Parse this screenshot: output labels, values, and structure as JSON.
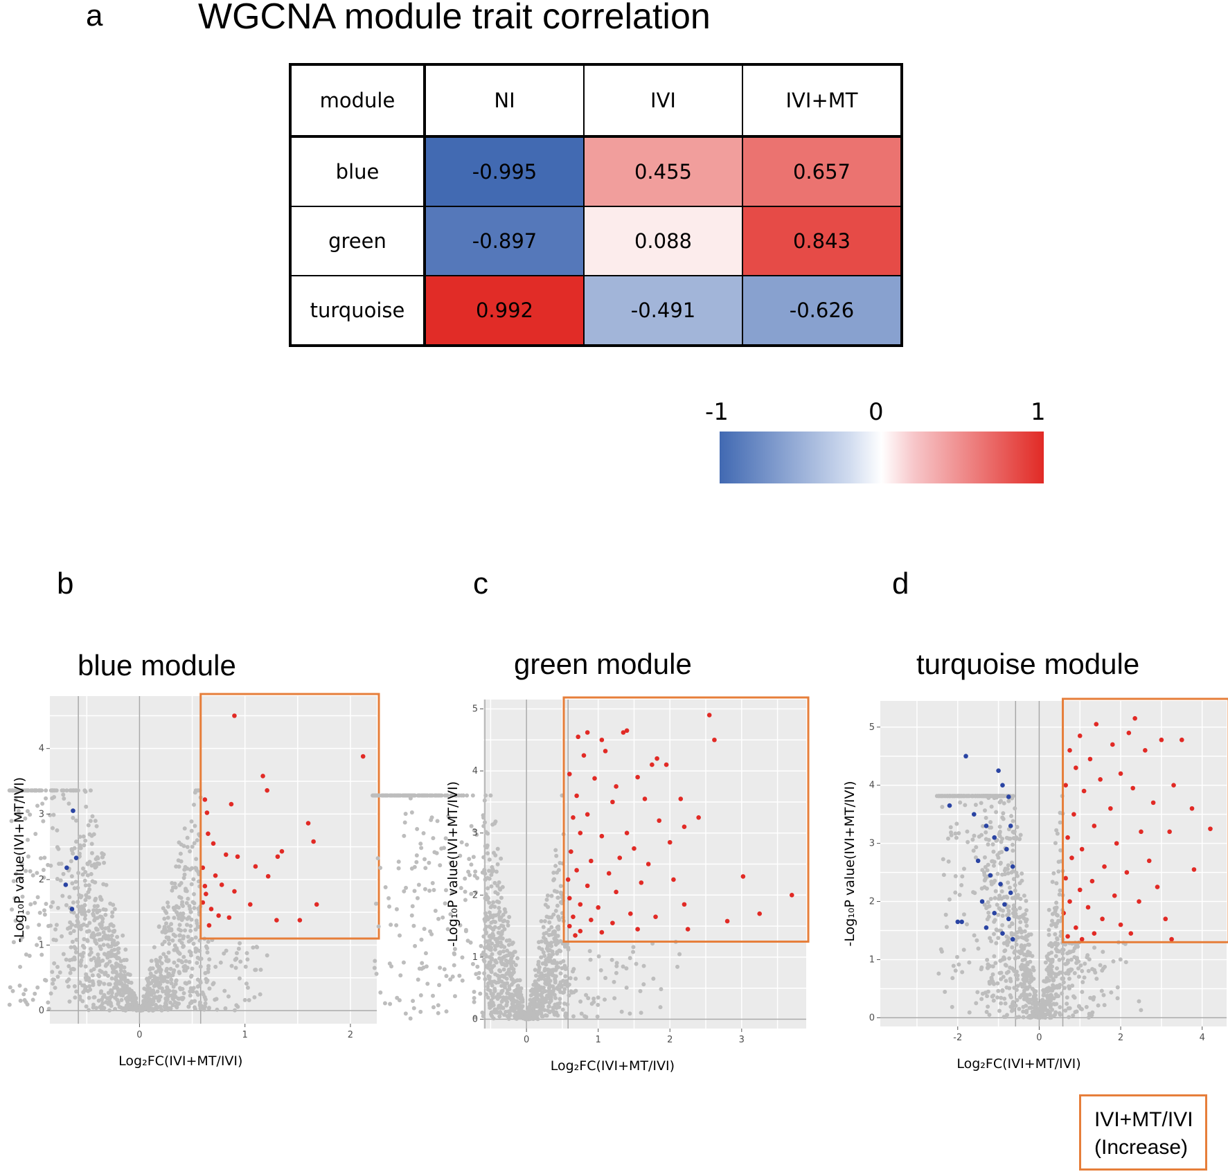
{
  "panels": {
    "a": "a",
    "b": "b",
    "c": "c",
    "d": "d"
  },
  "title": "WGCNA module trait correlation",
  "table": {
    "headers": [
      "module",
      "NI",
      "IVI",
      "IVI+MT"
    ],
    "rows": [
      {
        "module": "blue",
        "values": [
          "-0.995",
          "0.455",
          "0.657"
        ]
      },
      {
        "module": "green",
        "values": [
          "-0.897",
          "0.088",
          "0.843"
        ]
      },
      {
        "module": "turquoise",
        "values": [
          "0.992",
          "-0.491",
          "-0.626"
        ]
      }
    ]
  },
  "colorbar": {
    "min_label": "-1",
    "mid_label": "0",
    "max_label": "1",
    "low_color": "#4169b2",
    "high_color": "#e12a25"
  },
  "legend": {
    "line1": "IVI+MT/IVI",
    "line2": "(Increase)",
    "box_color": "#e67e3a"
  },
  "colors": {
    "up": "#e12a25",
    "down": "#2a44a3",
    "ns": "#bdbdbd",
    "panel_bg": "#ebebeb",
    "box": "#e67e3a"
  },
  "chart_data": [
    {
      "type": "heatmap",
      "title": "WGCNA module trait correlation",
      "x_categories": [
        "NI",
        "IVI",
        "IVI+MT"
      ],
      "y_categories": [
        "blue",
        "green",
        "turquoise"
      ],
      "values": [
        [
          -0.995,
          0.455,
          0.657
        ],
        [
          -0.897,
          0.088,
          0.843
        ],
        [
          0.992,
          -0.491,
          -0.626
        ]
      ],
      "color_range": [
        -1,
        1
      ]
    },
    {
      "type": "scatter",
      "title": "blue module",
      "xlabel": "Log₂FC(IVI+MT/IVI)",
      "ylabel": "-Log₁₀P value(IVI+MT/IVI)",
      "xlim": [
        -0.85,
        2.25
      ],
      "ylim": [
        -0.2,
        4.8
      ],
      "xticks": [
        0,
        1,
        2
      ],
      "yticks": [
        0,
        1,
        2,
        3,
        4
      ],
      "vlines": [
        -0.58,
        0,
        0.58
      ],
      "highlight_box": {
        "x": [
          0.58,
          2.25
        ],
        "y": [
          1.1,
          4.8
        ]
      },
      "up_points": [
        [
          0.9,
          4.5
        ],
        [
          2.12,
          3.88
        ],
        [
          1.17,
          3.58
        ],
        [
          1.21,
          3.36
        ],
        [
          0.62,
          3.22
        ],
        [
          0.64,
          3.02
        ],
        [
          0.87,
          3.15
        ],
        [
          1.6,
          2.86
        ],
        [
          1.65,
          2.58
        ],
        [
          0.65,
          2.7
        ],
        [
          1.35,
          2.43
        ],
        [
          1.31,
          2.35
        ],
        [
          0.82,
          2.38
        ],
        [
          0.7,
          2.55
        ],
        [
          0.6,
          2.18
        ],
        [
          0.72,
          2.06
        ],
        [
          0.93,
          2.35
        ],
        [
          1.1,
          2.2
        ],
        [
          0.78,
          1.92
        ],
        [
          0.63,
          1.78
        ],
        [
          1.22,
          2.05
        ],
        [
          0.9,
          1.82
        ],
        [
          0.68,
          1.55
        ],
        [
          0.75,
          1.45
        ],
        [
          1.05,
          1.62
        ],
        [
          1.68,
          1.62
        ],
        [
          1.52,
          1.38
        ],
        [
          1.3,
          1.38
        ],
        [
          0.85,
          1.42
        ],
        [
          0.6,
          1.65
        ],
        [
          0.62,
          1.9
        ],
        [
          0.66,
          1.3
        ]
      ],
      "down_points": [
        [
          -0.63,
          3.05
        ],
        [
          -0.6,
          2.33
        ],
        [
          -0.69,
          2.18
        ],
        [
          -0.7,
          1.92
        ],
        [
          -0.64,
          1.55
        ]
      ]
    },
    {
      "type": "scatter",
      "title": "green module",
      "xlabel": "Log₂FC(IVI+MT/IVI)",
      "ylabel": "-Log₁₀P value(IVI+MT/IVI)",
      "xlim": [
        -0.6,
        3.9
      ],
      "ylim": [
        -0.15,
        5.15
      ],
      "xticks": [
        0,
        1,
        2,
        3
      ],
      "yticks": [
        0,
        1,
        2,
        3,
        4,
        5
      ],
      "vlines": [
        -0.58,
        0,
        0.58
      ],
      "highlight_box": {
        "x": [
          0.52,
          3.9
        ],
        "y": [
          1.25,
          5.15
        ]
      },
      "up_points": [
        [
          2.55,
          4.9
        ],
        [
          2.62,
          4.5
        ],
        [
          0.85,
          4.62
        ],
        [
          1.35,
          4.62
        ],
        [
          1.05,
          4.5
        ],
        [
          0.72,
          4.55
        ],
        [
          1.4,
          4.65
        ],
        [
          1.82,
          4.2
        ],
        [
          1.75,
          4.1
        ],
        [
          1.95,
          4.1
        ],
        [
          1.1,
          4.32
        ],
        [
          0.8,
          4.25
        ],
        [
          1.55,
          3.9
        ],
        [
          0.6,
          3.95
        ],
        [
          0.95,
          3.88
        ],
        [
          1.25,
          3.75
        ],
        [
          0.7,
          3.6
        ],
        [
          2.15,
          3.55
        ],
        [
          1.65,
          3.55
        ],
        [
          0.65,
          3.25
        ],
        [
          1.2,
          3.5
        ],
        [
          0.85,
          3.3
        ],
        [
          2.4,
          3.25
        ],
        [
          1.85,
          3.2
        ],
        [
          2.2,
          3.1
        ],
        [
          1.4,
          3.0
        ],
        [
          0.75,
          3.0
        ],
        [
          1.05,
          2.95
        ],
        [
          2.0,
          2.85
        ],
        [
          1.5,
          2.75
        ],
        [
          0.62,
          2.7
        ],
        [
          1.3,
          2.6
        ],
        [
          0.9,
          2.55
        ],
        [
          1.7,
          2.5
        ],
        [
          0.7,
          2.4
        ],
        [
          1.15,
          2.35
        ],
        [
          0.58,
          2.25
        ],
        [
          3.02,
          2.3
        ],
        [
          2.05,
          2.25
        ],
        [
          1.6,
          2.2
        ],
        [
          0.85,
          2.15
        ],
        [
          1.25,
          2.05
        ],
        [
          3.7,
          2.0
        ],
        [
          0.6,
          1.95
        ],
        [
          2.2,
          1.85
        ],
        [
          0.75,
          1.85
        ],
        [
          1.0,
          1.8
        ],
        [
          1.45,
          1.7
        ],
        [
          0.65,
          1.65
        ],
        [
          1.8,
          1.65
        ],
        [
          3.25,
          1.7
        ],
        [
          0.9,
          1.6
        ],
        [
          1.2,
          1.55
        ],
        [
          2.8,
          1.58
        ],
        [
          0.6,
          1.5
        ],
        [
          1.55,
          1.45
        ],
        [
          2.25,
          1.45
        ],
        [
          0.75,
          1.42
        ],
        [
          1.05,
          1.4
        ],
        [
          0.68,
          1.35
        ]
      ],
      "down_points": []
    },
    {
      "type": "scatter",
      "title": "turquoise module",
      "xlabel": "Log₂FC(IVI+MT/IVI)",
      "ylabel": "-Log₁₀P value(IVI+MT/IVI)",
      "xlim": [
        -3.9,
        4.6
      ],
      "ylim": [
        -0.15,
        5.45
      ],
      "xticks": [
        -2,
        0,
        2,
        4
      ],
      "yticks": [
        0,
        1,
        2,
        3,
        4,
        5
      ],
      "vlines": [
        -0.58,
        0,
        0.58
      ],
      "highlight_box": {
        "x": [
          0.58,
          4.6
        ],
        "y": [
          1.3,
          5.45
        ]
      },
      "up_points": [
        [
          2.35,
          5.15
        ],
        [
          1.4,
          5.05
        ],
        [
          3.0,
          4.78
        ],
        [
          3.5,
          4.78
        ],
        [
          2.2,
          4.9
        ],
        [
          1.0,
          4.85
        ],
        [
          1.8,
          4.7
        ],
        [
          0.75,
          4.6
        ],
        [
          2.6,
          4.6
        ],
        [
          1.25,
          4.45
        ],
        [
          3.3,
          4.0
        ],
        [
          0.9,
          4.3
        ],
        [
          2.0,
          4.2
        ],
        [
          1.5,
          4.1
        ],
        [
          0.65,
          4.0
        ],
        [
          3.75,
          3.6
        ],
        [
          2.3,
          3.95
        ],
        [
          1.1,
          3.9
        ],
        [
          2.8,
          3.7
        ],
        [
          1.75,
          3.6
        ],
        [
          0.85,
          3.5
        ],
        [
          4.2,
          3.25
        ],
        [
          1.35,
          3.3
        ],
        [
          2.5,
          3.2
        ],
        [
          3.2,
          3.2
        ],
        [
          0.7,
          3.1
        ],
        [
          1.9,
          3.0
        ],
        [
          1.05,
          2.9
        ],
        [
          2.7,
          2.7
        ],
        [
          0.8,
          2.75
        ],
        [
          3.8,
          2.55
        ],
        [
          1.6,
          2.6
        ],
        [
          2.15,
          2.5
        ],
        [
          0.65,
          2.4
        ],
        [
          1.3,
          2.35
        ],
        [
          2.9,
          2.25
        ],
        [
          1.0,
          2.2
        ],
        [
          1.85,
          2.1
        ],
        [
          0.75,
          2.0
        ],
        [
          2.45,
          2.0
        ],
        [
          1.2,
          1.9
        ],
        [
          3.1,
          1.7
        ],
        [
          0.6,
          1.8
        ],
        [
          1.55,
          1.7
        ],
        [
          2.0,
          1.6
        ],
        [
          0.9,
          1.55
        ],
        [
          3.25,
          1.35
        ],
        [
          1.35,
          1.45
        ],
        [
          0.7,
          1.4
        ],
        [
          2.25,
          1.45
        ],
        [
          1.05,
          1.35
        ]
      ],
      "down_points": [
        [
          -2.2,
          3.65
        ],
        [
          -1.8,
          4.5
        ],
        [
          -1.0,
          4.25
        ],
        [
          -0.9,
          4.0
        ],
        [
          -0.75,
          3.8
        ],
        [
          -1.6,
          3.5
        ],
        [
          -1.3,
          3.3
        ],
        [
          -0.7,
          3.3
        ],
        [
          -1.1,
          3.1
        ],
        [
          -0.8,
          2.9
        ],
        [
          -1.5,
          2.7
        ],
        [
          -0.65,
          2.6
        ],
        [
          -1.2,
          2.45
        ],
        [
          -0.95,
          2.3
        ],
        [
          -0.7,
          2.15
        ],
        [
          -1.4,
          2.0
        ],
        [
          -0.85,
          1.95
        ],
        [
          -1.1,
          1.8
        ],
        [
          -2.0,
          1.65
        ],
        [
          -1.9,
          1.65
        ],
        [
          -0.75,
          1.7
        ],
        [
          -1.3,
          1.55
        ],
        [
          -0.9,
          1.45
        ],
        [
          -0.65,
          1.35
        ]
      ]
    }
  ]
}
